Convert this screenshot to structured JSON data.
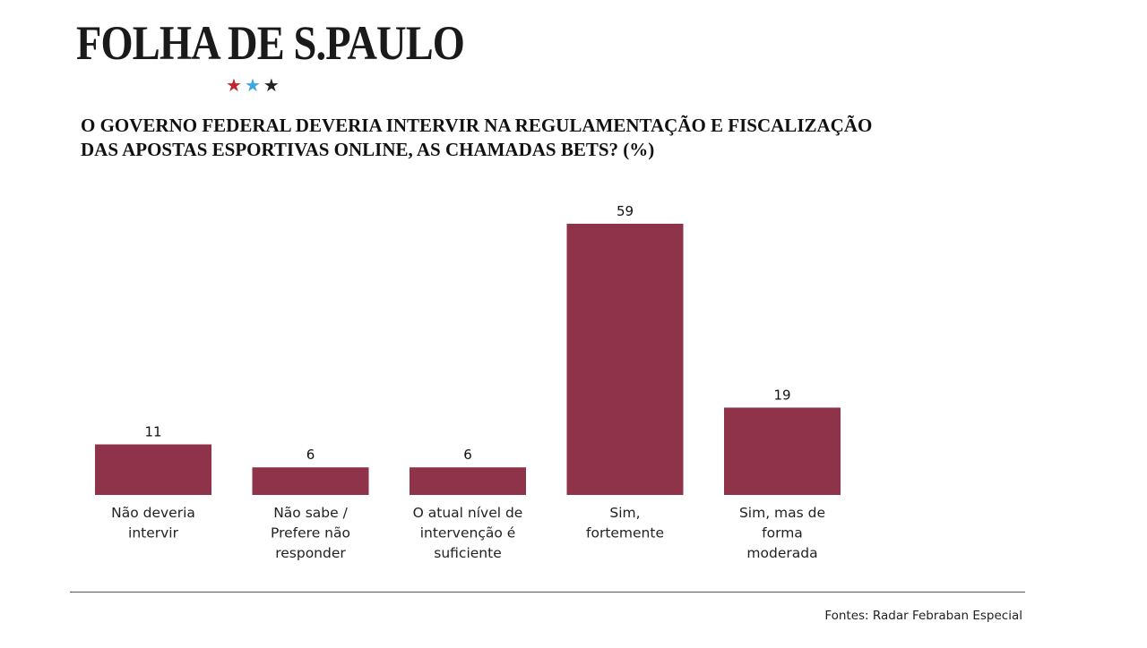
{
  "logo": {
    "text": "FOLHA DE S.PAULO",
    "star_colors": [
      "#c0272d",
      "#3fa6e0",
      "#222222"
    ]
  },
  "chart_data": {
    "type": "bar",
    "title": "O GOVERNO FEDERAL DEVERIA INTERVIR NA REGULAMENTAÇÃO E FISCALIZAÇÃO\nDAS APOSTAS ESPORTIVAS ONLINE, AS CHAMADAS BETS? (%)",
    "categories": [
      "Não deveria\nintervir",
      "Não sabe /\nPrefere não\nresponder",
      "O atual nível de\nintervenção é\nsuficiente",
      "Sim,\nfortemente",
      "Sim, mas de\nforma\nmoderada"
    ],
    "values": [
      11,
      6,
      6,
      59,
      19
    ],
    "bar_color": "#8e3349",
    "xlabel": "",
    "ylabel": "",
    "ylim": [
      0,
      59
    ],
    "grid": false
  },
  "source": "Fontes: Radar Febraban Especial"
}
